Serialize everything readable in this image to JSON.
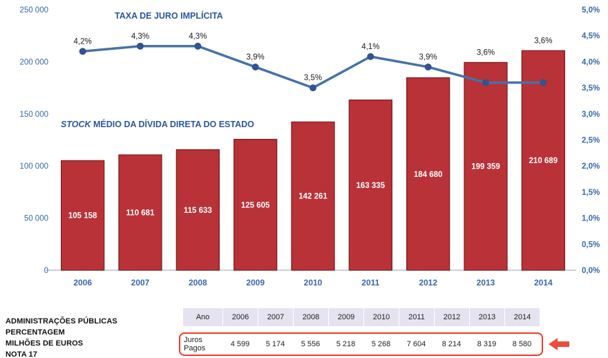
{
  "colors": {
    "bar_fill": "#B93237",
    "bar_stroke": "#7E1F23",
    "line": "#4572A7",
    "marker": "#31538F",
    "axis_text": "#3A67AD",
    "title_text": "#2B55A0",
    "bar_label": "#FFFFFF",
    "rate_label": "#1A1A1A",
    "axis_line": "#9AA0A6"
  },
  "titles": {
    "line_series": "TAXA DE JURO IMPLÍCITA",
    "bar_series_italic": "STOCK",
    "bar_series_rest": " MÉDIO DA DÍVIDA DIRETA DO ESTADO"
  },
  "chart_data": {
    "type": "combo",
    "categories": [
      "2006",
      "2007",
      "2008",
      "2009",
      "2010",
      "2011",
      "2012",
      "2013",
      "2014"
    ],
    "series": [
      {
        "name": "STOCK MÉDIO DA DÍVIDA DIRETA DO ESTADO",
        "type": "bar",
        "axis": "left",
        "values": [
          105158,
          110681,
          115633,
          125605,
          142261,
          163335,
          184680,
          199359,
          210689
        ],
        "labels": [
          "105 158",
          "110 681",
          "115 633",
          "125 605",
          "142 261",
          "163 335",
          "184 680",
          "199 359",
          "210 689"
        ]
      },
      {
        "name": "TAXA DE JURO IMPLÍCITA",
        "type": "line",
        "axis": "right",
        "values": [
          4.2,
          4.3,
          4.3,
          3.9,
          3.5,
          4.1,
          3.9,
          3.6,
          3.6
        ],
        "labels": [
          "4,2%",
          "4,3%",
          "4,3%",
          "3,9%",
          "3,5%",
          "4,1%",
          "3,9%",
          "3,6%",
          "3,6%"
        ]
      }
    ],
    "left_axis": {
      "min": 0,
      "max": 250000,
      "step": 50000,
      "tick_labels": [
        "0",
        "50 000",
        "100 000",
        "150 000",
        "200 000",
        "250 000"
      ]
    },
    "right_axis": {
      "min": 0,
      "max": 5,
      "step": 0.5,
      "tick_labels": [
        "0,0%",
        "0,5%",
        "1,0%",
        "1,5%",
        "2,0%",
        "2,5%",
        "3,0%",
        "3,5%",
        "4,0%",
        "4,5%",
        "5,0%"
      ]
    },
    "grid": false,
    "legend_position": "none"
  },
  "table": {
    "header_row": {
      "label": "Ano",
      "values": [
        "2006",
        "2007",
        "2008",
        "2009",
        "2010",
        "2011",
        "2012",
        "2013",
        "2014"
      ]
    },
    "highlight_row": {
      "label": "Juros Pagos",
      "values": [
        "4 599",
        "5 174",
        "5 556",
        "5 218",
        "5 268",
        "7 604",
        "8 214",
        "8 319",
        "8 580"
      ]
    }
  },
  "footer": {
    "notes": [
      "ADMINISTRAÇÕES PÚBLICAS",
      "PERCENTAGEM",
      "MILHÕES DE EUROS",
      "NOTA 17"
    ]
  }
}
